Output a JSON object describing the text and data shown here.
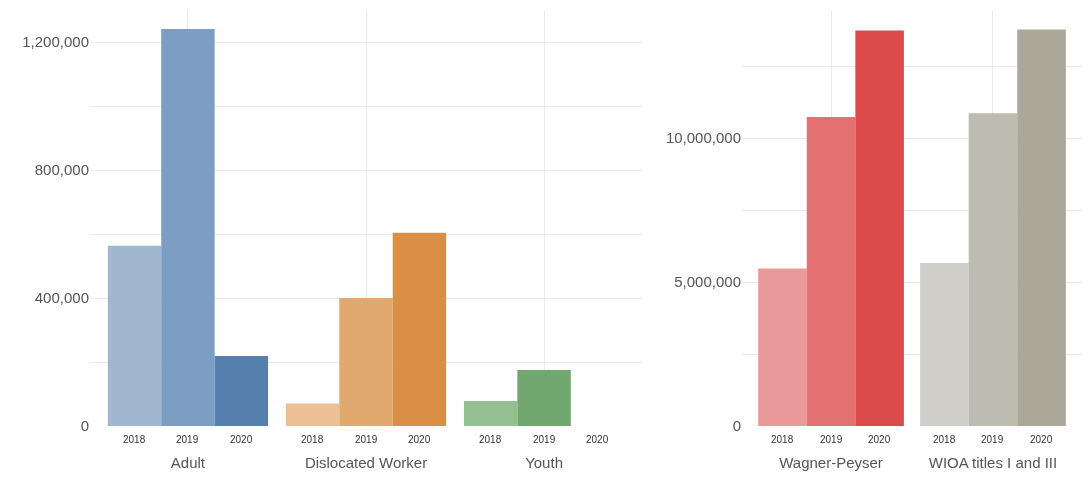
{
  "chart_data": [
    {
      "type": "bar",
      "categories": [
        "Adult",
        "Dislocated Worker",
        "Youth"
      ],
      "ylim": [
        0,
        1300000
      ],
      "yticks": [
        0,
        {
          "value": 200000,
          "label": null
        },
        {
          "value": 400000,
          "label": "400,000"
        },
        {
          "value": 600000,
          "label": null
        },
        {
          "value": 800000,
          "label": "800,000"
        },
        {
          "value": 1000000,
          "label": null
        },
        {
          "value": 1200000,
          "label": "1,200,000"
        }
      ],
      "grid": true,
      "legend": false,
      "series": [
        {
          "name": "2018",
          "values": [
            563000,
            70000,
            78000
          ],
          "colors": [
            "#a0b7cf",
            "#ebc096",
            "#93bf91"
          ]
        },
        {
          "name": "2019",
          "values": [
            1241000,
            400000,
            175000
          ],
          "colors": [
            "#7b9ec2",
            "#e2a96f",
            "#72a86f"
          ]
        },
        {
          "name": "2020",
          "values": [
            219000,
            604000,
            0
          ],
          "colors": [
            "#5580ad",
            "#db8f45",
            "#4e8f4b"
          ]
        }
      ]
    },
    {
      "type": "bar",
      "categories": [
        "Wagner-Peyser",
        "WIOA titles I and III"
      ],
      "ylim": [
        0,
        14450000
      ],
      "yticks": [
        0,
        {
          "value": 2500000,
          "label": null
        },
        {
          "value": 5000000,
          "label": "5,000,000"
        },
        {
          "value": 7500000,
          "label": null
        },
        {
          "value": 10000000,
          "label": "10,000,000"
        },
        {
          "value": 12500000,
          "label": null
        }
      ],
      "grid": true,
      "legend": false,
      "series": [
        {
          "name": "2018",
          "values": [
            5470000,
            5660000
          ],
          "colors": [
            "#ea9999",
            "#cfcec8"
          ]
        },
        {
          "name": "2019",
          "values": [
            10730000,
            10860000
          ],
          "colors": [
            "#e37171",
            "#bcbcb1"
          ]
        },
        {
          "name": "2020",
          "values": [
            13740000,
            13770000
          ],
          "colors": [
            "#db4b4b",
            "#aca899"
          ]
        }
      ]
    }
  ]
}
